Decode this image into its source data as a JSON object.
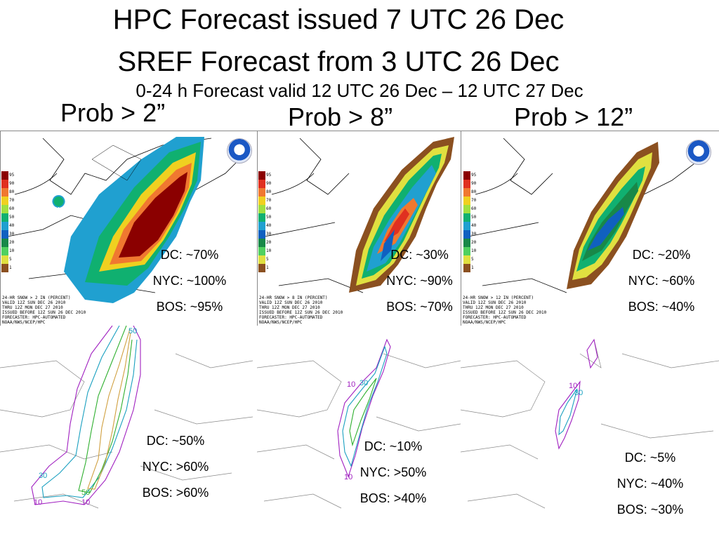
{
  "title_line1": "HPC Forecast issued 7 UTC 26 Dec",
  "title_line2": "SREF Forecast from 3 UTC 26 Dec",
  "subtitle": "0-24 h Forecast valid 12 UTC 26 Dec – 12 UTC 27 Dec",
  "columns": [
    {
      "label": "Prob > 2”"
    },
    {
      "label": "Prob > 8”"
    },
    {
      "label": "Prob > 12”"
    }
  ],
  "legend_values": [
    "95",
    "90",
    "80",
    "70",
    "60",
    "50",
    "40",
    "30",
    "20",
    "10",
    "5",
    "1"
  ],
  "hpc_headers": [
    [
      "24-HR SNOW > 2 IN (PERCENT)",
      "VALID 12Z SUN DEC 26 2010",
      "THRU 12Z MON DEC 27 2010",
      "ISSUED BEFORE 12Z SUN 26 DEC 2010",
      "FORECASTER: HPC-AUTOMATED",
      "NOAA/NWS/NCEP/HPC"
    ],
    [
      "24-HR SNOW > 8 IN (PERCENT)",
      "VALID 12Z SUN DEC 26 2010",
      "THRU 12Z MON DEC 27 2010",
      "ISSUED BEFORE 12Z SUN 26 DEC 2010",
      "FORECASTER: HPC-AUTOMATED",
      "NOAA/NWS/NCEP/HPC"
    ],
    [
      "24-HR SNOW > 12 IN (PERCENT)",
      "VALID 12Z SUN DEC 26 2010",
      "THRU 12Z MON DEC 27 2010",
      "ISSUED BEFORE 12Z SUN 26 DEC 2010",
      "FORECASTER: HPC-AUTOMATED",
      "NOAA/NWS/NCEP/HPC"
    ]
  ],
  "hpc_stats": [
    {
      "dc": "DC: ~70%",
      "nyc": "NYC: ~100%",
      "bos": "BOS: ~95%"
    },
    {
      "dc": "DC: ~30%",
      "nyc": "NYC: ~90%",
      "bos": "BOS: ~70%"
    },
    {
      "dc": "DC: ~20%",
      "nyc": "NYC: ~60%",
      "bos": "BOS: ~40%"
    }
  ],
  "sref_stats": [
    {
      "dc": "DC: ~50%",
      "nyc": "NYC: >60%",
      "bos": "BOS: >60%"
    },
    {
      "dc": "DC: ~10%",
      "nyc": "NYC: >50%",
      "bos": "BOS: >40%"
    },
    {
      "dc": "DC: ~5%",
      "nyc": "NYC: ~40%",
      "bos": "BOS: ~30%"
    }
  ],
  "sref_contour_labels": [
    [
      "50",
      "10",
      "30",
      "50",
      "10"
    ],
    [
      "10",
      "30",
      "10"
    ],
    [
      "10",
      "30"
    ]
  ],
  "colors": {
    "p95": "#8b0000",
    "p90": "#e03020",
    "p80": "#f07830",
    "p70": "#f0d020",
    "p60": "#a0e040",
    "p50": "#10b070",
    "p40": "#20a0d0",
    "p30": "#1060c0",
    "p20": "#188848",
    "p10": "#50d060",
    "p5": "#e0e040",
    "p1": "#8b5020"
  }
}
